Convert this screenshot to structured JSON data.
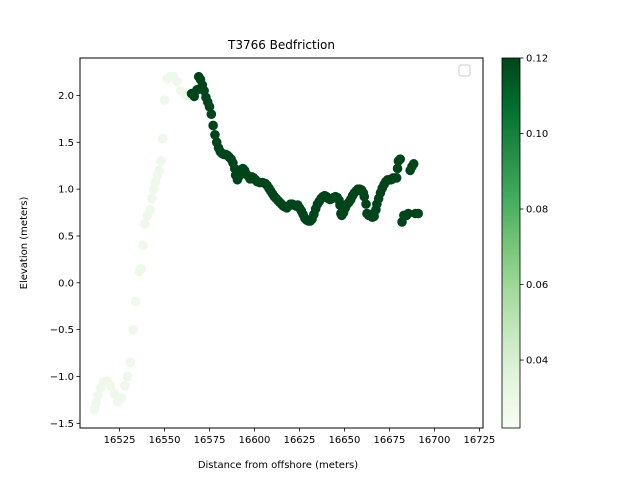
{
  "chart_data": {
    "type": "scatter",
    "title": "T3766 Bedfriction",
    "xlabel": "Distance from offshore (meters)",
    "ylabel": "Elevation (meters)",
    "xlim": [
      16503,
      16727
    ],
    "ylim": [
      -1.55,
      2.4
    ],
    "xticks": [
      16525,
      16550,
      16575,
      16600,
      16625,
      16650,
      16675,
      16700,
      16725
    ],
    "xtick_labels": [
      "16525",
      "16550",
      "16575",
      "16600",
      "16625",
      "16650",
      "16675",
      "16700",
      "16725"
    ],
    "yticks": [
      -1.5,
      -1.0,
      -0.5,
      0.0,
      0.5,
      1.0,
      1.5,
      2.0
    ],
    "ytick_labels": [
      "−1.5",
      "−1.0",
      "−0.5",
      "0.0",
      "0.5",
      "1.0",
      "1.5",
      "2.0"
    ],
    "grid": false,
    "legend": "top-right",
    "colormap": "Greens",
    "color_label": "",
    "color_range": [
      0.022,
      0.12
    ],
    "colorbar_ticks": [
      0.04,
      0.06,
      0.08,
      0.1,
      0.12
    ],
    "colorbar_tick_labels": [
      "0.04",
      "0.06",
      "0.08",
      "0.10",
      "0.12"
    ],
    "low_value": 0.022,
    "high_value": 0.12,
    "low_segment": [
      [
        16511.0,
        -1.35
      ],
      [
        16512.0,
        -1.28
      ],
      [
        16513.0,
        -1.2
      ],
      [
        16514.5,
        -1.12
      ],
      [
        16516.0,
        -1.06
      ],
      [
        16518.0,
        -1.05
      ],
      [
        16520.0,
        -1.1
      ],
      [
        16522.0,
        -1.18
      ],
      [
        16524.0,
        -1.27
      ],
      [
        16526.0,
        -1.23
      ],
      [
        16528.0,
        -1.1
      ],
      [
        16529.5,
        -1.0
      ],
      [
        16531.0,
        -0.85
      ],
      [
        16532.5,
        -0.5
      ],
      [
        16534.0,
        -0.2
      ],
      [
        16536.0,
        0.12
      ],
      [
        16537.0,
        0.15
      ],
      [
        16538.0,
        0.4
      ],
      [
        16539.0,
        0.63
      ],
      [
        16540.5,
        0.72
      ],
      [
        16542.0,
        0.78
      ],
      [
        16543.0,
        0.9
      ],
      [
        16544.0,
        1.0
      ],
      [
        16545.0,
        1.08
      ],
      [
        16546.0,
        1.15
      ],
      [
        16547.0,
        1.2
      ],
      [
        16548.0,
        1.3
      ],
      [
        16549.0,
        1.54
      ],
      [
        16550.0,
        1.95
      ],
      [
        16551.5,
        2.18
      ],
      [
        16553.0,
        2.2
      ],
      [
        16555.0,
        2.2
      ],
      [
        16557.0,
        2.15
      ],
      [
        16559.0,
        2.05
      ],
      [
        16561.0,
        2.02
      ],
      [
        16563.0,
        1.98
      ]
    ],
    "high_segment": [
      [
        16565.0,
        2.02
      ],
      [
        16566.5,
        1.99
      ],
      [
        16568.0,
        2.06
      ],
      [
        16569.0,
        2.2
      ],
      [
        16570.0,
        2.17
      ],
      [
        16571.0,
        2.11
      ],
      [
        16572.0,
        2.05
      ],
      [
        16573.0,
        1.98
      ],
      [
        16574.0,
        1.93
      ],
      [
        16575.0,
        1.88
      ],
      [
        16576.0,
        1.8
      ],
      [
        16577.0,
        1.68
      ],
      [
        16578.0,
        1.58
      ],
      [
        16579.0,
        1.5
      ],
      [
        16580.0,
        1.44
      ],
      [
        16581.0,
        1.4
      ],
      [
        16582.0,
        1.38
      ],
      [
        16583.0,
        1.37
      ],
      [
        16584.0,
        1.37
      ],
      [
        16585.0,
        1.36
      ],
      [
        16586.0,
        1.34
      ],
      [
        16587.0,
        1.32
      ],
      [
        16588.0,
        1.28
      ],
      [
        16589.0,
        1.22
      ],
      [
        16589.5,
        1.15
      ],
      [
        16590.5,
        1.1
      ],
      [
        16591.5,
        1.14
      ],
      [
        16592.5,
        1.18
      ],
      [
        16593.5,
        1.22
      ],
      [
        16594.5,
        1.2
      ],
      [
        16595.5,
        1.16
      ],
      [
        16596.5,
        1.14
      ],
      [
        16597.5,
        1.11
      ],
      [
        16598.5,
        1.13
      ],
      [
        16599.5,
        1.12
      ],
      [
        16600.5,
        1.1
      ],
      [
        16601.5,
        1.08
      ],
      [
        16603.0,
        1.07
      ],
      [
        16604.5,
        1.07
      ],
      [
        16606.0,
        1.06
      ],
      [
        16607.0,
        1.04
      ],
      [
        16608.0,
        1.01
      ],
      [
        16609.0,
        0.98
      ],
      [
        16610.0,
        0.95
      ],
      [
        16611.0,
        0.92
      ],
      [
        16612.0,
        0.9
      ],
      [
        16613.0,
        0.88
      ],
      [
        16614.0,
        0.86
      ],
      [
        16615.0,
        0.84
      ],
      [
        16616.0,
        0.82
      ],
      [
        16617.0,
        0.81
      ],
      [
        16618.0,
        0.8
      ],
      [
        16619.0,
        0.82
      ],
      [
        16620.0,
        0.84
      ],
      [
        16621.0,
        0.84
      ],
      [
        16622.0,
        0.83
      ],
      [
        16623.0,
        0.82
      ],
      [
        16624.0,
        0.83
      ],
      [
        16625.0,
        0.8
      ],
      [
        16626.0,
        0.77
      ],
      [
        16627.0,
        0.73
      ],
      [
        16628.0,
        0.69
      ],
      [
        16629.0,
        0.67
      ],
      [
        16630.0,
        0.66
      ],
      [
        16631.0,
        0.66
      ],
      [
        16632.0,
        0.68
      ],
      [
        16633.0,
        0.73
      ],
      [
        16634.0,
        0.79
      ],
      [
        16635.0,
        0.84
      ],
      [
        16636.0,
        0.87
      ],
      [
        16637.0,
        0.9
      ],
      [
        16638.0,
        0.92
      ],
      [
        16639.0,
        0.93
      ],
      [
        16640.0,
        0.92
      ],
      [
        16641.0,
        0.9
      ],
      [
        16642.0,
        0.89
      ],
      [
        16643.0,
        0.9
      ],
      [
        16644.0,
        0.91
      ],
      [
        16645.0,
        0.92
      ],
      [
        16646.0,
        0.91
      ],
      [
        16647.0,
        0.88
      ],
      [
        16647.5,
        0.83
      ],
      [
        16648.0,
        0.74
      ],
      [
        16648.5,
        0.72
      ],
      [
        16649.5,
        0.75
      ],
      [
        16650.5,
        0.8
      ],
      [
        16651.5,
        0.84
      ],
      [
        16652.5,
        0.86
      ],
      [
        16653.5,
        0.89
      ],
      [
        16654.5,
        0.93
      ],
      [
        16655.5,
        0.96
      ],
      [
        16656.5,
        0.98
      ],
      [
        16657.5,
        1.0
      ],
      [
        16658.5,
        1.0
      ],
      [
        16659.5,
        0.99
      ],
      [
        16660.5,
        0.96
      ],
      [
        16661.0,
        0.92
      ],
      [
        16662.0,
        0.84
      ],
      [
        16662.5,
        0.74
      ],
      [
        16663.5,
        0.72
      ],
      [
        16664.5,
        0.73
      ],
      [
        16665.5,
        0.7
      ],
      [
        16666.5,
        0.71
      ],
      [
        16667.5,
        0.78
      ],
      [
        16668.0,
        0.84
      ],
      [
        16669.0,
        0.9
      ],
      [
        16670.0,
        0.96
      ],
      [
        16671.0,
        1.01
      ],
      [
        16672.0,
        1.05
      ],
      [
        16673.0,
        1.08
      ],
      [
        16674.0,
        1.1
      ],
      [
        16675.0,
        1.1
      ],
      [
        16676.0,
        1.1
      ],
      [
        16677.0,
        1.12
      ],
      [
        16678.0,
        1.12
      ],
      [
        16679.0,
        1.12
      ],
      [
        16679.5,
        1.22
      ],
      [
        16680.0,
        1.3
      ],
      [
        16681.0,
        1.32
      ],
      [
        16682.0,
        0.65
      ],
      [
        16683.0,
        0.72
      ],
      [
        16684.5,
        0.72
      ],
      [
        16685.5,
        0.74
      ],
      [
        16686.5,
        1.2
      ],
      [
        16687.5,
        1.24
      ],
      [
        16688.5,
        1.27
      ],
      [
        16689.5,
        0.74
      ],
      [
        16691.0,
        0.74
      ]
    ]
  }
}
